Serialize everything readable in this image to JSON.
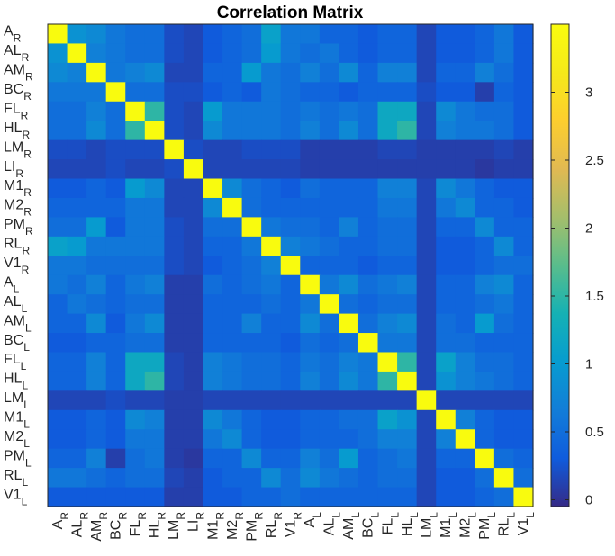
{
  "chart_data": {
    "type": "heatmap",
    "title": "Correlation Matrix",
    "xlabel": "",
    "ylabel": "",
    "labels": [
      {
        "base": "A",
        "sub": "R"
      },
      {
        "base": "AL",
        "sub": "R"
      },
      {
        "base": "AM",
        "sub": "R"
      },
      {
        "base": "BC",
        "sub": "R"
      },
      {
        "base": "FL",
        "sub": "R"
      },
      {
        "base": "HL",
        "sub": "R"
      },
      {
        "base": "LM",
        "sub": "R"
      },
      {
        "base": "LI",
        "sub": "R"
      },
      {
        "base": "M1",
        "sub": "R"
      },
      {
        "base": "M2",
        "sub": "R"
      },
      {
        "base": "PM",
        "sub": "R"
      },
      {
        "base": "RL",
        "sub": "R"
      },
      {
        "base": "V1",
        "sub": "R"
      },
      {
        "base": "A",
        "sub": "L"
      },
      {
        "base": "AL",
        "sub": "L"
      },
      {
        "base": "AM",
        "sub": "L"
      },
      {
        "base": "BC",
        "sub": "L"
      },
      {
        "base": "FL",
        "sub": "L"
      },
      {
        "base": "HL",
        "sub": "L"
      },
      {
        "base": "LM",
        "sub": "L"
      },
      {
        "base": "M1",
        "sub": "L"
      },
      {
        "base": "M2",
        "sub": "L"
      },
      {
        "base": "PM",
        "sub": "L"
      },
      {
        "base": "RL",
        "sub": "L"
      },
      {
        "base": "V1",
        "sub": "L"
      }
    ],
    "colorbar": {
      "range": [
        -0.05,
        3.5
      ],
      "ticks": [
        "0",
        "0.5",
        "1",
        "1.5",
        "2",
        "2.5",
        "3"
      ],
      "colormap": "parula"
    },
    "matrix": [
      [
        3.5,
        0.9,
        0.8,
        0.6,
        0.5,
        0.5,
        0.2,
        0.15,
        0.3,
        0.4,
        0.5,
        1.1,
        0.6,
        0.6,
        0.4,
        0.4,
        0.3,
        0.4,
        0.4,
        0.15,
        0.3,
        0.3,
        0.4,
        0.6,
        0.3
      ],
      [
        0.9,
        3.5,
        0.7,
        0.6,
        0.5,
        0.5,
        0.2,
        0.15,
        0.3,
        0.4,
        0.5,
        1.0,
        0.6,
        0.5,
        0.6,
        0.4,
        0.3,
        0.4,
        0.4,
        0.15,
        0.3,
        0.3,
        0.4,
        0.6,
        0.3
      ],
      [
        0.8,
        0.7,
        3.5,
        0.6,
        0.7,
        0.8,
        0.15,
        0.15,
        0.4,
        0.4,
        1.0,
        0.6,
        0.5,
        0.7,
        0.5,
        0.8,
        0.4,
        0.7,
        0.7,
        0.15,
        0.4,
        0.4,
        0.7,
        0.5,
        0.3
      ],
      [
        0.6,
        0.6,
        0.6,
        3.5,
        0.5,
        0.5,
        0.2,
        0.2,
        0.3,
        0.4,
        0.3,
        0.6,
        0.5,
        0.4,
        0.4,
        0.3,
        0.4,
        0.4,
        0.4,
        0.2,
        0.3,
        0.3,
        0.1,
        0.4,
        0.3
      ],
      [
        0.5,
        0.5,
        0.7,
        0.5,
        3.5,
        1.5,
        0.2,
        0.15,
        1.0,
        0.6,
        0.6,
        0.6,
        0.5,
        0.6,
        0.5,
        0.6,
        0.5,
        1.2,
        1.2,
        0.15,
        0.8,
        0.6,
        0.5,
        0.5,
        0.3
      ],
      [
        0.5,
        0.5,
        0.8,
        0.5,
        1.5,
        3.5,
        0.2,
        0.15,
        0.8,
        0.6,
        0.6,
        0.6,
        0.5,
        0.7,
        0.5,
        0.8,
        0.5,
        1.2,
        1.5,
        0.15,
        0.7,
        0.6,
        0.6,
        0.5,
        0.3
      ],
      [
        0.2,
        0.2,
        0.15,
        0.2,
        0.2,
        0.2,
        3.5,
        0.2,
        0.15,
        0.15,
        0.2,
        0.2,
        0.2,
        0.1,
        0.1,
        0.1,
        0.1,
        0.15,
        0.15,
        0.1,
        0.1,
        0.1,
        0.1,
        0.15,
        0.1
      ],
      [
        0.15,
        0.15,
        0.15,
        0.2,
        0.15,
        0.15,
        0.2,
        3.5,
        0.15,
        0.15,
        0.15,
        0.15,
        0.15,
        0.1,
        0.1,
        0.1,
        0.1,
        0.1,
        0.1,
        0.1,
        0.1,
        0.1,
        0.05,
        0.1,
        0.1
      ],
      [
        0.3,
        0.3,
        0.4,
        0.3,
        1.0,
        0.8,
        0.15,
        0.15,
        3.5,
        0.8,
        0.5,
        0.4,
        0.3,
        0.5,
        0.4,
        0.4,
        0.4,
        0.7,
        0.7,
        0.15,
        0.8,
        0.6,
        0.4,
        0.3,
        0.3
      ],
      [
        0.4,
        0.4,
        0.4,
        0.4,
        0.6,
        0.6,
        0.15,
        0.15,
        0.8,
        3.5,
        0.5,
        0.4,
        0.4,
        0.4,
        0.4,
        0.4,
        0.4,
        0.6,
        0.6,
        0.15,
        0.6,
        0.8,
        0.4,
        0.4,
        0.3
      ],
      [
        0.5,
        0.5,
        1.0,
        0.3,
        0.6,
        0.6,
        0.2,
        0.15,
        0.5,
        0.5,
        3.5,
        0.6,
        0.5,
        0.5,
        0.4,
        0.7,
        0.4,
        0.5,
        0.5,
        0.15,
        0.4,
        0.4,
        0.8,
        0.4,
        0.4
      ],
      [
        1.1,
        1.0,
        0.6,
        0.6,
        0.6,
        0.6,
        0.2,
        0.15,
        0.4,
        0.4,
        0.6,
        3.5,
        0.7,
        0.6,
        0.5,
        0.4,
        0.4,
        0.5,
        0.5,
        0.15,
        0.3,
        0.3,
        0.4,
        0.8,
        0.4
      ],
      [
        0.6,
        0.6,
        0.5,
        0.5,
        0.5,
        0.5,
        0.2,
        0.15,
        0.3,
        0.4,
        0.5,
        0.7,
        3.5,
        0.4,
        0.4,
        0.4,
        0.3,
        0.4,
        0.4,
        0.15,
        0.3,
        0.3,
        0.4,
        0.5,
        0.5
      ],
      [
        0.6,
        0.5,
        0.7,
        0.4,
        0.6,
        0.7,
        0.1,
        0.1,
        0.5,
        0.4,
        0.5,
        0.6,
        0.4,
        3.5,
        0.6,
        0.8,
        0.5,
        0.6,
        0.7,
        0.15,
        0.4,
        0.4,
        0.7,
        0.8,
        0.4
      ],
      [
        0.4,
        0.6,
        0.5,
        0.4,
        0.5,
        0.5,
        0.1,
        0.1,
        0.4,
        0.4,
        0.4,
        0.5,
        0.4,
        0.6,
        3.5,
        0.5,
        0.4,
        0.5,
        0.5,
        0.15,
        0.4,
        0.4,
        0.5,
        0.6,
        0.4
      ],
      [
        0.4,
        0.4,
        0.8,
        0.3,
        0.6,
        0.8,
        0.1,
        0.1,
        0.4,
        0.4,
        0.7,
        0.4,
        0.4,
        0.8,
        0.5,
        3.5,
        0.5,
        0.7,
        0.8,
        0.15,
        0.5,
        0.4,
        1.0,
        0.5,
        0.4
      ],
      [
        0.3,
        0.3,
        0.4,
        0.4,
        0.5,
        0.5,
        0.1,
        0.1,
        0.4,
        0.4,
        0.4,
        0.4,
        0.3,
        0.5,
        0.4,
        0.5,
        3.5,
        0.6,
        0.6,
        0.15,
        0.5,
        0.5,
        0.4,
        0.4,
        0.4
      ],
      [
        0.4,
        0.4,
        0.7,
        0.4,
        1.2,
        1.2,
        0.15,
        0.1,
        0.7,
        0.6,
        0.5,
        0.5,
        0.4,
        0.6,
        0.5,
        0.7,
        0.6,
        3.5,
        1.5,
        0.15,
        1.1,
        0.7,
        0.5,
        0.5,
        0.4
      ],
      [
        0.4,
        0.4,
        0.7,
        0.4,
        1.2,
        1.5,
        0.15,
        0.1,
        0.7,
        0.6,
        0.5,
        0.5,
        0.4,
        0.7,
        0.5,
        0.8,
        0.6,
        1.5,
        3.5,
        0.15,
        0.9,
        0.7,
        0.6,
        0.5,
        0.4
      ],
      [
        0.15,
        0.15,
        0.15,
        0.2,
        0.15,
        0.15,
        0.1,
        0.1,
        0.15,
        0.15,
        0.15,
        0.15,
        0.15,
        0.15,
        0.15,
        0.15,
        0.15,
        0.15,
        0.15,
        3.5,
        0.15,
        0.15,
        0.15,
        0.15,
        0.15
      ],
      [
        0.3,
        0.3,
        0.4,
        0.3,
        0.8,
        0.7,
        0.1,
        0.1,
        0.8,
        0.6,
        0.4,
        0.3,
        0.3,
        0.4,
        0.4,
        0.5,
        0.5,
        1.1,
        0.9,
        0.15,
        3.5,
        0.7,
        0.4,
        0.3,
        0.3
      ],
      [
        0.3,
        0.3,
        0.4,
        0.3,
        0.6,
        0.6,
        0.1,
        0.1,
        0.6,
        0.8,
        0.4,
        0.3,
        0.3,
        0.4,
        0.4,
        0.4,
        0.5,
        0.7,
        0.7,
        0.15,
        0.7,
        3.5,
        0.4,
        0.3,
        0.3
      ],
      [
        0.4,
        0.4,
        0.7,
        0.1,
        0.5,
        0.6,
        0.1,
        0.05,
        0.4,
        0.4,
        0.8,
        0.4,
        0.4,
        0.7,
        0.5,
        1.0,
        0.4,
        0.5,
        0.6,
        0.15,
        0.4,
        0.4,
        3.5,
        0.5,
        0.4
      ],
      [
        0.6,
        0.6,
        0.5,
        0.4,
        0.5,
        0.5,
        0.15,
        0.1,
        0.3,
        0.4,
        0.4,
        0.8,
        0.5,
        0.8,
        0.6,
        0.5,
        0.4,
        0.5,
        0.5,
        0.15,
        0.3,
        0.3,
        0.5,
        3.5,
        0.5
      ],
      [
        0.3,
        0.3,
        0.3,
        0.3,
        0.3,
        0.3,
        0.1,
        0.1,
        0.3,
        0.3,
        0.4,
        0.4,
        0.5,
        0.4,
        0.4,
        0.4,
        0.4,
        0.4,
        0.4,
        0.15,
        0.3,
        0.3,
        0.4,
        0.5,
        3.5
      ]
    ]
  }
}
